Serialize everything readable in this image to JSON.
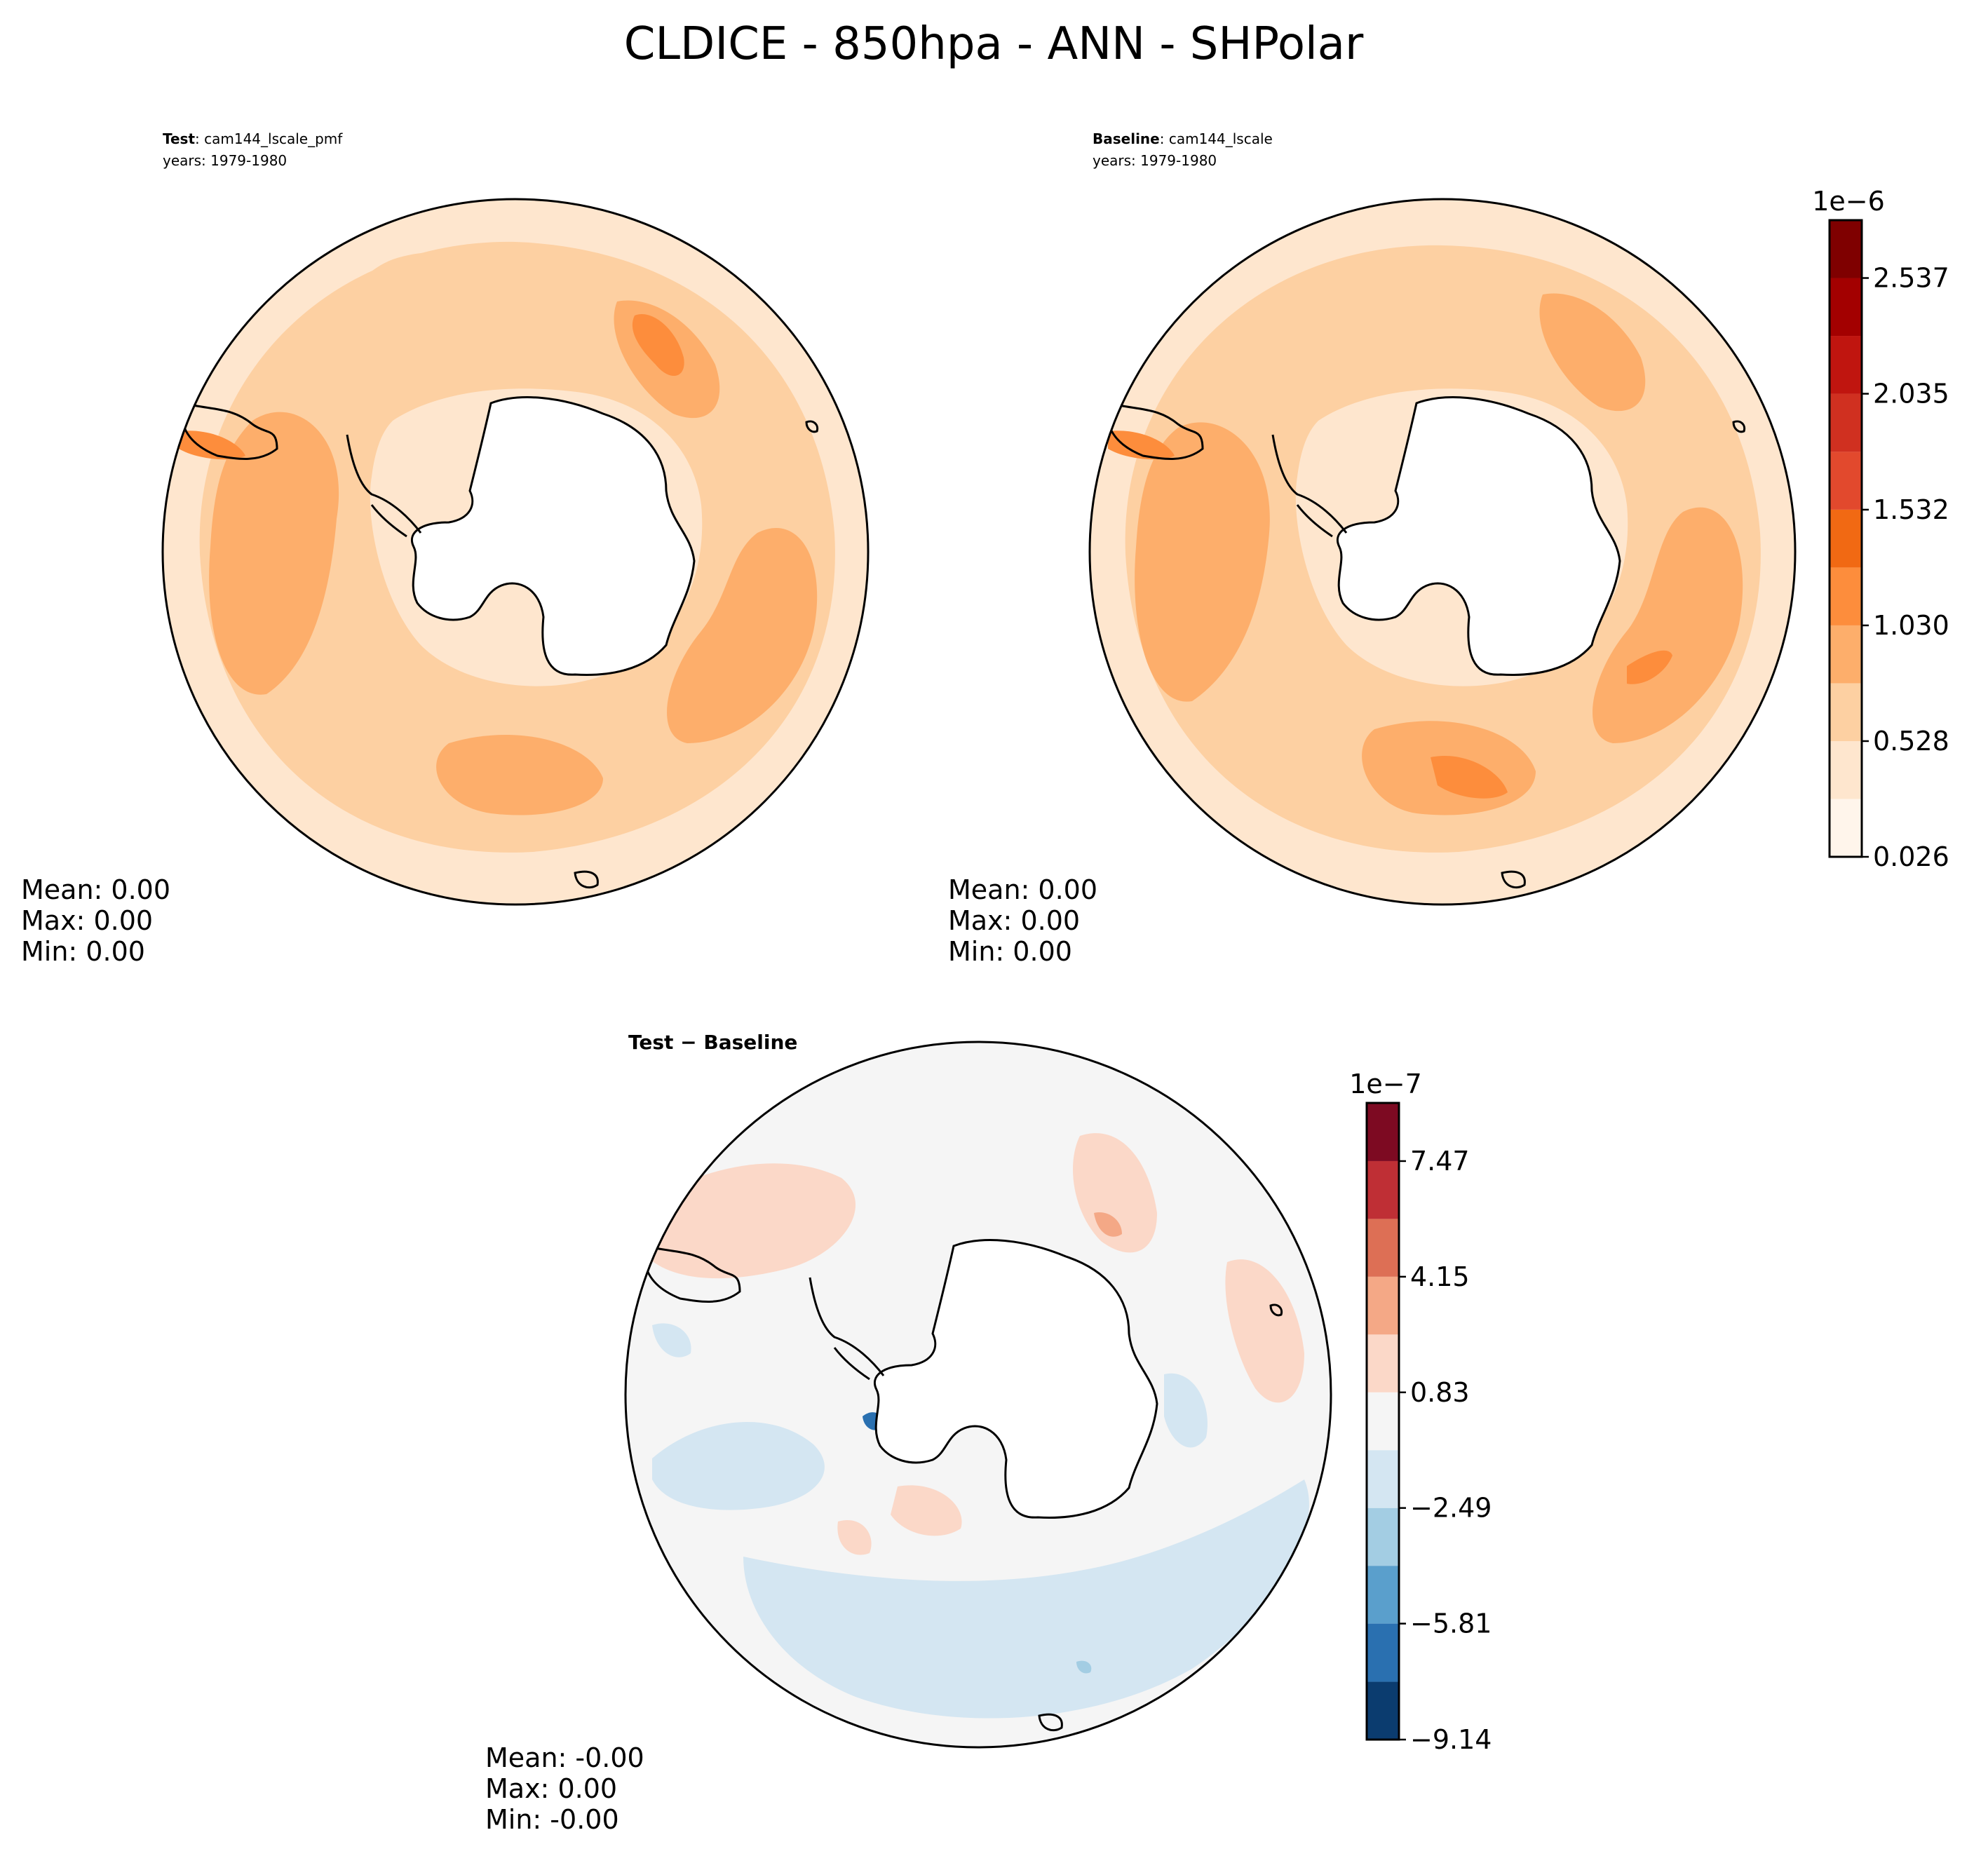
{
  "figure": {
    "title": "CLDICE - 850hpa - ANN - SHPolar"
  },
  "panels": [
    {
      "id": "test",
      "label_bold": "Test",
      "label_rest": ": cam144_lscale_pmf",
      "years": "years: 1979-1980",
      "stats": [
        "Mean:  0.00",
        "Max:  0.00",
        "Min:  0.00"
      ]
    },
    {
      "id": "baseline",
      "label_bold": "Baseline",
      "label_rest": ": cam144_lscale",
      "years": "years: 1979-1980",
      "stats": [
        "Mean:  0.00",
        "Max:  0.00",
        "Min:  0.00"
      ]
    },
    {
      "id": "diff",
      "label": "Test − Baseline",
      "stats": [
        "Mean: -0.00",
        "Max:  0.00",
        "Min: -0.00"
      ]
    }
  ],
  "chart_data": [
    {
      "type": "heatmap",
      "projection": "south-polar-stereographic",
      "panels": [
        "test",
        "baseline"
      ],
      "colorbar": {
        "exponent_label": "1e−6",
        "levels": [
          0.026,
          0.277,
          0.528,
          0.779,
          1.03,
          1.281,
          1.532,
          1.783,
          2.035,
          2.286,
          2.537,
          2.788
        ],
        "tick_values": [
          0.026,
          0.528,
          1.03,
          1.532,
          2.035,
          2.537
        ],
        "tick_labels": [
          "0.026",
          "0.528",
          "1.030",
          "1.532",
          "2.035",
          "2.537"
        ],
        "colors": [
          "#fff5eb",
          "#fee6ce",
          "#fdd0a2",
          "#fdae6b",
          "#fd8d3c",
          "#f16913",
          "#e2492d",
          "#d03020",
          "#c0150f",
          "#a30000",
          "#7f0000"
        ]
      }
    },
    {
      "type": "heatmap",
      "projection": "south-polar-stereographic",
      "panels": [
        "diff"
      ],
      "colorbar": {
        "exponent_label": "1e−7",
        "levels": [
          -9.14,
          -7.48,
          -5.81,
          -4.15,
          -2.49,
          -0.83,
          0.83,
          2.49,
          4.15,
          5.81,
          7.47,
          9.14
        ],
        "tick_values": [
          -9.14,
          -5.81,
          -2.49,
          0.83,
          4.15,
          7.47
        ],
        "tick_labels": [
          "−9.14",
          "−5.81",
          "−2.49",
          "0.83",
          "4.15",
          "7.47"
        ],
        "colors": [
          "#0b3c6f",
          "#2a70b0",
          "#5a9fcc",
          "#a3cde3",
          "#d4e6f2",
          "#f5f5f5",
          "#fbd8c8",
          "#f4a886",
          "#dd6f55",
          "#bf2f35",
          "#7d0a22"
        ]
      }
    }
  ]
}
